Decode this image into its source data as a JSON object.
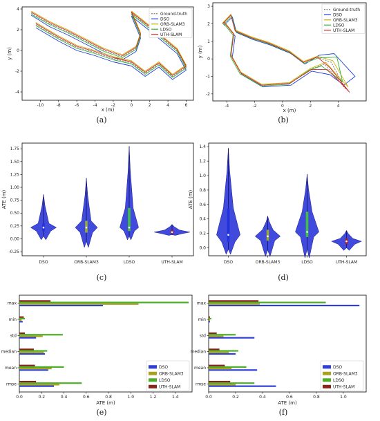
{
  "chart_data": [
    {
      "panel": "a",
      "caption": "(a)",
      "type": "line",
      "xlabel": "x (m)",
      "ylabel": "y (m)",
      "xlim": [
        -12,
        6.8
      ],
      "ylim": [
        -4.8,
        4.2
      ],
      "xticks": [
        "-10",
        "-8",
        "-6",
        "-4",
        "-2",
        "0",
        "2",
        "4",
        "6"
      ],
      "xtick_values": [
        -10,
        -8,
        -6,
        -4,
        -2,
        0,
        2,
        4,
        6
      ],
      "yticks": [
        "4",
        "2",
        "0",
        "-2",
        "-4"
      ],
      "ytick_values": [
        4,
        2,
        0,
        -2,
        -4
      ],
      "legend": {
        "placement": "top-right"
      },
      "series": [
        {
          "name": "Ground-truth",
          "color": "#808080",
          "dashed": true,
          "x": [
            -11,
            -9,
            -7,
            -5,
            -3,
            -1,
            0.5,
            1,
            0,
            2,
            5,
            6,
            4.5,
            3,
            1.5,
            0,
            -2,
            -4,
            -6,
            -8,
            -10.5
          ],
          "y": [
            3.6,
            2.6,
            1.8,
            0.9,
            0,
            -0.6,
            0.2,
            1.5,
            3.6,
            2.2,
            0,
            -1.6,
            -2.5,
            -1.3,
            -2.2,
            -1.2,
            -0.8,
            -0.2,
            0.3,
            1.2,
            2.5
          ]
        },
        {
          "name": "DSO",
          "color": "#1f3fd6",
          "x": [
            -11,
            -9,
            -7,
            -5,
            -3,
            -1,
            0.5,
            1,
            0,
            2,
            5,
            6,
            4.5,
            3,
            1.5,
            0,
            -2,
            -4,
            -6,
            -8,
            -10.5
          ],
          "y": [
            3.4,
            2.3,
            1.5,
            0.6,
            -0.3,
            -0.9,
            -0.1,
            1.2,
            3.3,
            1.9,
            -0.3,
            -1.9,
            -2.8,
            -1.6,
            -2.5,
            -1.5,
            -1.1,
            -0.5,
            0,
            0.9,
            2.2
          ]
        },
        {
          "name": "ORB-SLAM3",
          "color": "#c8b000",
          "x": [
            -11,
            -9,
            -7,
            -5,
            -3,
            -1,
            0.5,
            1,
            0,
            2,
            5,
            6,
            4.5,
            3,
            1.5,
            0,
            -2,
            -4,
            -6,
            -8,
            -10.5
          ],
          "y": [
            3.8,
            2.8,
            2.0,
            1.1,
            0.2,
            -0.4,
            0.4,
            1.7,
            3.8,
            2.4,
            0.2,
            -1.4,
            -2.3,
            -1.1,
            -2.0,
            -1.0,
            -0.6,
            0,
            0.5,
            1.4,
            2.7
          ]
        },
        {
          "name": "LDSO",
          "color": "#33b233",
          "x": [
            -11,
            -9,
            -7,
            -5,
            -3,
            -1,
            0.5,
            1,
            0,
            2,
            5,
            6,
            4.5,
            3,
            1.5,
            0,
            -2,
            -4,
            -6,
            -8,
            -10.5
          ],
          "y": [
            3.5,
            2.5,
            1.7,
            0.8,
            -0.1,
            -0.7,
            0.1,
            1.4,
            3.5,
            2.1,
            -0.1,
            -1.7,
            -2.6,
            -1.4,
            -2.3,
            -1.3,
            -0.9,
            -0.3,
            0.2,
            1.1,
            2.4
          ]
        },
        {
          "name": "UTH-SLAM",
          "color": "#d62728",
          "x": [
            -11,
            -9,
            -7,
            -5,
            -3,
            -1,
            0.5,
            1,
            0,
            2,
            5,
            6,
            4.5,
            3,
            1.5,
            0,
            -2,
            -4,
            -6,
            -8,
            -10.5
          ],
          "y": [
            3.7,
            2.7,
            1.9,
            1.0,
            0.1,
            -0.5,
            0.3,
            1.6,
            3.7,
            2.3,
            0.1,
            -1.5,
            -2.4,
            -1.2,
            -2.1,
            -1.1,
            -0.7,
            -0.1,
            0.4,
            1.3,
            2.6
          ]
        }
      ]
    },
    {
      "panel": "b",
      "caption": "(b)",
      "type": "line",
      "xlabel": "x (m)",
      "ylabel": "y (m)",
      "xlim": [
        -5,
        6
      ],
      "ylim": [
        -2.4,
        3.2
      ],
      "xticks": [
        "-4",
        "-2",
        "0",
        "2",
        "4"
      ],
      "xtick_values": [
        -4,
        -2,
        0,
        2,
        4
      ],
      "yticks": [
        "3",
        "2",
        "1",
        "0",
        "-1",
        "-2"
      ],
      "ytick_values": [
        3,
        2,
        1,
        0,
        -1,
        -2
      ],
      "legend": {
        "placement": "top-right"
      },
      "series": [
        {
          "name": "Ground-truth",
          "color": "#808080",
          "dashed": true,
          "x": [
            -4.3,
            -3.7,
            -3.4,
            -2.2,
            -1,
            0.5,
            1.5,
            2.5,
            3.5,
            4.5,
            4.0,
            3.0,
            2.0,
            0.5,
            -1.5,
            -3,
            -3.7,
            -3.5,
            -4.2
          ],
          "y": [
            2.0,
            2.5,
            1.6,
            1.2,
            0.9,
            0.4,
            -0.2,
            0.1,
            -0.2,
            -1.7,
            -1.2,
            -0.3,
            -0.6,
            -1.4,
            -1.5,
            -0.8,
            0.2,
            1.4,
            2.1
          ]
        },
        {
          "name": "DSO",
          "color": "#1f3fd6",
          "x": [
            -4.2,
            -3.6,
            -3.3,
            -2.1,
            -0.9,
            0.6,
            1.6,
            2.6,
            3.7,
            5.2,
            4.4,
            3.4,
            2.1,
            0.6,
            -1.4,
            -2.9,
            -3.6,
            -3.4,
            -4.1
          ],
          "y": [
            1.9,
            2.4,
            1.5,
            1.1,
            0.8,
            0.3,
            -0.3,
            0.2,
            0.3,
            -1.0,
            -1.5,
            -0.9,
            -0.7,
            -1.5,
            -1.6,
            -0.9,
            0.1,
            1.3,
            2.0
          ]
        },
        {
          "name": "ORB-SLAM3",
          "color": "#c8b000",
          "x": [
            -4.3,
            -3.7,
            -3.4,
            -2.2,
            -1,
            0.5,
            1.5,
            2.5,
            3.6,
            4.7,
            4.1,
            3.1,
            2.0,
            0.5,
            -1.5,
            -3,
            -3.7,
            -3.5,
            -4.2
          ],
          "y": [
            2.05,
            2.55,
            1.65,
            1.25,
            0.95,
            0.45,
            -0.15,
            0.15,
            -0.1,
            -1.6,
            -1.1,
            -0.2,
            -0.55,
            -1.35,
            -1.45,
            -0.75,
            0.25,
            1.45,
            2.15
          ]
        },
        {
          "name": "LDSO",
          "color": "#33b233",
          "x": [
            -4.25,
            -3.65,
            -3.35,
            -2.15,
            -0.95,
            0.55,
            1.55,
            2.55,
            3.9,
            4.3,
            3.6,
            2.8,
            1.9,
            0.45,
            -1.55,
            -3.05,
            -3.75,
            -3.55,
            -4.25
          ],
          "y": [
            1.95,
            2.45,
            1.55,
            1.15,
            0.85,
            0.35,
            -0.25,
            0.05,
            0.1,
            -1.3,
            -0.9,
            -0.4,
            -0.65,
            -1.45,
            -1.55,
            -0.85,
            0.15,
            1.35,
            2.05
          ]
        },
        {
          "name": "UTH-SLAM",
          "color": "#d62728",
          "x": [
            -4.3,
            -3.7,
            -3.4,
            -2.2,
            -1,
            0.5,
            1.5,
            2.5,
            3.4,
            4.8,
            4.2,
            3.2,
            2.1,
            0.5,
            -1.5,
            -3,
            -3.7,
            -3.5,
            -4.2
          ],
          "y": [
            2.0,
            2.5,
            1.6,
            1.2,
            0.9,
            0.4,
            -0.2,
            0.1,
            -0.5,
            -1.9,
            -1.4,
            -0.6,
            -0.6,
            -1.4,
            -1.5,
            -0.8,
            0.2,
            1.4,
            2.1
          ]
        }
      ]
    },
    {
      "panel": "c",
      "caption": "(c)",
      "type": "violin",
      "ylabel": "ATE (m)",
      "ylim": [
        -0.33,
        1.86
      ],
      "yticks": [
        "1.75",
        "1.50",
        "1.25",
        "1.00",
        "0.75",
        "0.50",
        "0.25",
        "0.00",
        "-0.25"
      ],
      "ytick_values": [
        1.75,
        1.5,
        1.25,
        1.0,
        0.75,
        0.5,
        0.25,
        0.0,
        -0.25
      ],
      "categories": [
        "DSO",
        "ORB-SLAM3",
        "LDSO",
        "UTH-SLAM"
      ],
      "violins": [
        {
          "min": 0.05,
          "q1": 0.15,
          "median": 0.22,
          "q3": 0.3,
          "max": 0.86,
          "width": 0.3,
          "color": "#2233dd",
          "fill": "#2b36d9"
        },
        {
          "min": -0.05,
          "q1": 0.12,
          "median": 0.22,
          "q3": 0.35,
          "max": 1.18,
          "width": 0.26,
          "color": "#9aaa30",
          "fill": "#2b36d9"
        },
        {
          "min": 0.05,
          "q1": 0.15,
          "median": 0.22,
          "q3": 0.6,
          "max": 1.8,
          "width": 0.22,
          "color": "#40c040",
          "fill": "#2b36d9"
        },
        {
          "min": 0.08,
          "q1": 0.1,
          "median": 0.13,
          "q3": 0.17,
          "max": 0.28,
          "width": 0.42,
          "color": "#b02020",
          "fill": "#2b36d9"
        }
      ]
    },
    {
      "panel": "d",
      "caption": "(d)",
      "type": "violin",
      "ylabel": "ATE (m)",
      "ylim": [
        -0.11,
        1.45
      ],
      "yticks": [
        "1.4",
        "1.2",
        "1.0",
        "0.8",
        "0.6",
        "0.4",
        "0.2",
        "0.0"
      ],
      "ytick_values": [
        1.4,
        1.2,
        1.0,
        0.8,
        0.6,
        0.4,
        0.2,
        0.0
      ],
      "categories": [
        "DSO",
        "ORB-SLAM3",
        "LDSO",
        "UTH-SLAM"
      ],
      "violins": [
        {
          "min": -0.02,
          "q1": 0.08,
          "median": 0.18,
          "q3": 0.55,
          "max": 1.38,
          "width": 0.3,
          "color": "#2233dd",
          "fill": "#2b36d9"
        },
        {
          "min": -0.03,
          "q1": 0.1,
          "median": 0.16,
          "q3": 0.25,
          "max": 0.44,
          "width": 0.32,
          "color": "#9aaa30",
          "fill": "#2b36d9"
        },
        {
          "min": -0.02,
          "q1": 0.15,
          "median": 0.22,
          "q3": 0.5,
          "max": 1.02,
          "width": 0.3,
          "color": "#40c040",
          "fill": "#2b36d9"
        },
        {
          "min": 0.0,
          "q1": 0.05,
          "median": 0.09,
          "q3": 0.13,
          "max": 0.24,
          "width": 0.38,
          "color": "#b02020",
          "fill": "#2b36d9"
        }
      ]
    },
    {
      "panel": "e",
      "caption": "(e)",
      "type": "bar",
      "orientation": "horizontal",
      "xlabel": "ATE (m)",
      "xlim": [
        0,
        1.55
      ],
      "xticks": [
        "0.0",
        "0.2",
        "0.4",
        "0.6",
        "0.8",
        "1.0",
        "1.2",
        "1.4"
      ],
      "xtick_values": [
        0,
        0.2,
        0.4,
        0.6,
        0.8,
        1.0,
        1.2,
        1.4
      ],
      "categories": [
        "max",
        "min",
        "std",
        "median",
        "mean",
        "rmse"
      ],
      "legend": {
        "placement": "lower-right"
      },
      "series": [
        {
          "name": "DSO",
          "color": "#2f3fd6",
          "values": [
            0.75,
            0.03,
            0.15,
            0.23,
            0.26,
            0.31
          ]
        },
        {
          "name": "ORB-SLAM3",
          "color": "#a9a21f",
          "values": [
            1.07,
            0.02,
            0.21,
            0.22,
            0.29,
            0.36
          ]
        },
        {
          "name": "LDSO",
          "color": "#4caf25",
          "values": [
            1.52,
            0.05,
            0.39,
            0.25,
            0.4,
            0.56
          ]
        },
        {
          "name": "UTH-SLAM",
          "color": "#8a2318",
          "values": [
            0.28,
            0.04,
            0.05,
            0.13,
            0.14,
            0.15
          ]
        }
      ]
    },
    {
      "panel": "f",
      "caption": "(f)",
      "type": "bar",
      "orientation": "horizontal",
      "xlabel": "ATE (m)",
      "xlim": [
        0,
        1.17
      ],
      "xticks": [
        "0.0",
        "0.2",
        "0.4",
        "0.6",
        "0.8",
        "1.0"
      ],
      "xtick_values": [
        0,
        0.2,
        0.4,
        0.6,
        0.8,
        1.0
      ],
      "categories": [
        "max",
        "min",
        "std",
        "median",
        "mean",
        "rmse"
      ],
      "legend": {
        "placement": "lower-right"
      },
      "series": [
        {
          "name": "DSO",
          "color": "#2f3fd6",
          "values": [
            1.12,
            0.01,
            0.34,
            0.2,
            0.36,
            0.5
          ]
        },
        {
          "name": "ORB-SLAM3",
          "color": "#a9a21f",
          "values": [
            0.38,
            0.01,
            0.11,
            0.15,
            0.17,
            0.2
          ]
        },
        {
          "name": "LDSO",
          "color": "#4caf25",
          "values": [
            0.87,
            0.02,
            0.2,
            0.22,
            0.28,
            0.34
          ]
        },
        {
          "name": "UTH-SLAM",
          "color": "#8a2318",
          "values": [
            0.37,
            0.01,
            0.06,
            0.08,
            0.12,
            0.16
          ]
        }
      ]
    }
  ]
}
